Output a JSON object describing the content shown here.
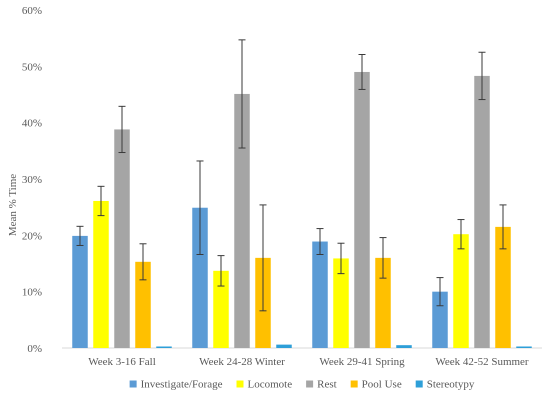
{
  "chart_data": {
    "type": "bar",
    "title": "",
    "xlabel": "",
    "ylabel": "Mean % Time",
    "ylim": [
      0,
      60
    ],
    "yticks": [
      "0%",
      "10%",
      "20%",
      "30%",
      "40%",
      "50%",
      "60%"
    ],
    "grid": false,
    "legend": "bottom",
    "categories": [
      "Week 3-16 Fall",
      "Week 24-28 Winter",
      "Week 29-41 Spring",
      "Week 42-52 Summer"
    ],
    "series": [
      {
        "name": "Investigate/Forage",
        "color": "#5b9bd5",
        "values": [
          19.9,
          24.9,
          18.9,
          10.0
        ],
        "errors": [
          1.7,
          8.3,
          2.3,
          2.5
        ]
      },
      {
        "name": "Locomote",
        "color": "#ffff00",
        "values": [
          26.1,
          13.7,
          15.9,
          20.2
        ],
        "errors": [
          2.6,
          2.7,
          2.7,
          2.6
        ]
      },
      {
        "name": "Rest",
        "color": "#a5a5a5",
        "values": [
          38.8,
          45.1,
          49.0,
          48.3
        ],
        "errors": [
          4.1,
          9.6,
          3.1,
          4.2
        ]
      },
      {
        "name": "Pool Use",
        "color": "#ffc000",
        "values": [
          15.3,
          16.0,
          16.0,
          21.5
        ],
        "errors": [
          3.2,
          9.4,
          3.6,
          3.9
        ]
      },
      {
        "name": "Stereotypy",
        "color": "#2e9fd8",
        "values": [
          0.1,
          0.6,
          0.5,
          0.2
        ],
        "errors": [
          0.05,
          0.15,
          0.1,
          0.05
        ]
      }
    ]
  }
}
